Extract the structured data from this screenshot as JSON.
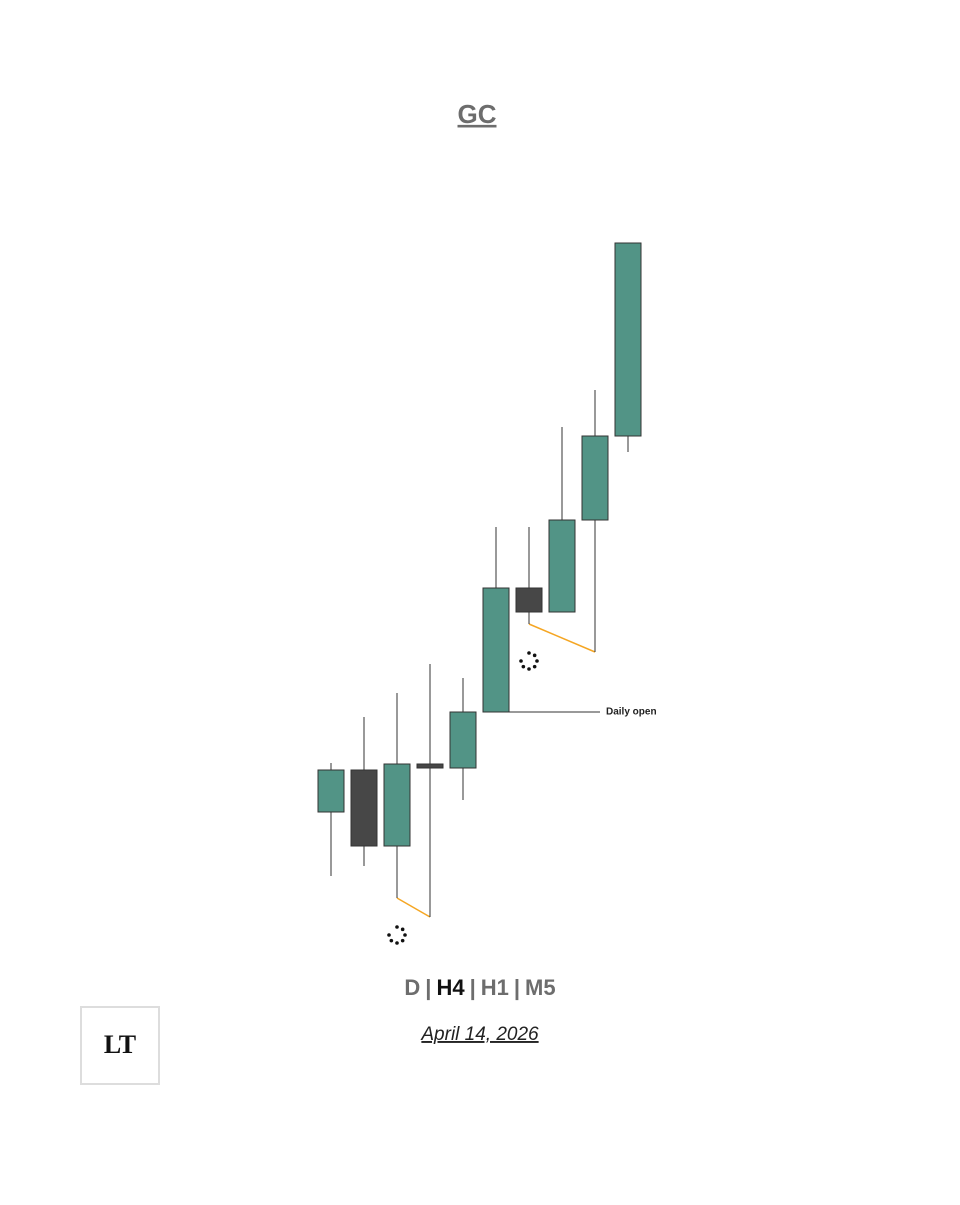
{
  "chart_data": {
    "type": "candlestick",
    "title": "GC",
    "open": [
      188,
      230,
      154,
      236,
      232,
      288,
      412,
      388,
      480,
      564
    ],
    "high": [
      237,
      283,
      307,
      336,
      322,
      473,
      473,
      573,
      610,
      757
    ],
    "low": [
      124,
      134,
      102,
      83,
      200,
      288,
      376,
      388,
      348,
      548
    ],
    "close": [
      230,
      154,
      236,
      232,
      288,
      412,
      388,
      480,
      564,
      757
    ],
    "up_color": "#529486",
    "down_color": "#474747",
    "sweep_color": "#f5a623",
    "ylim": [
      60,
      780
    ],
    "sweeps": [
      [
        2,
        3
      ],
      [
        6,
        8
      ]
    ],
    "daily_open": {
      "label": "Daily open",
      "value": 288,
      "from": 5
    }
  },
  "timeframes": [
    "D",
    "H4",
    "H1",
    "M5"
  ],
  "active_timeframe": "H4",
  "separator": "|",
  "date": "April 14, 2026",
  "logo": "LT"
}
